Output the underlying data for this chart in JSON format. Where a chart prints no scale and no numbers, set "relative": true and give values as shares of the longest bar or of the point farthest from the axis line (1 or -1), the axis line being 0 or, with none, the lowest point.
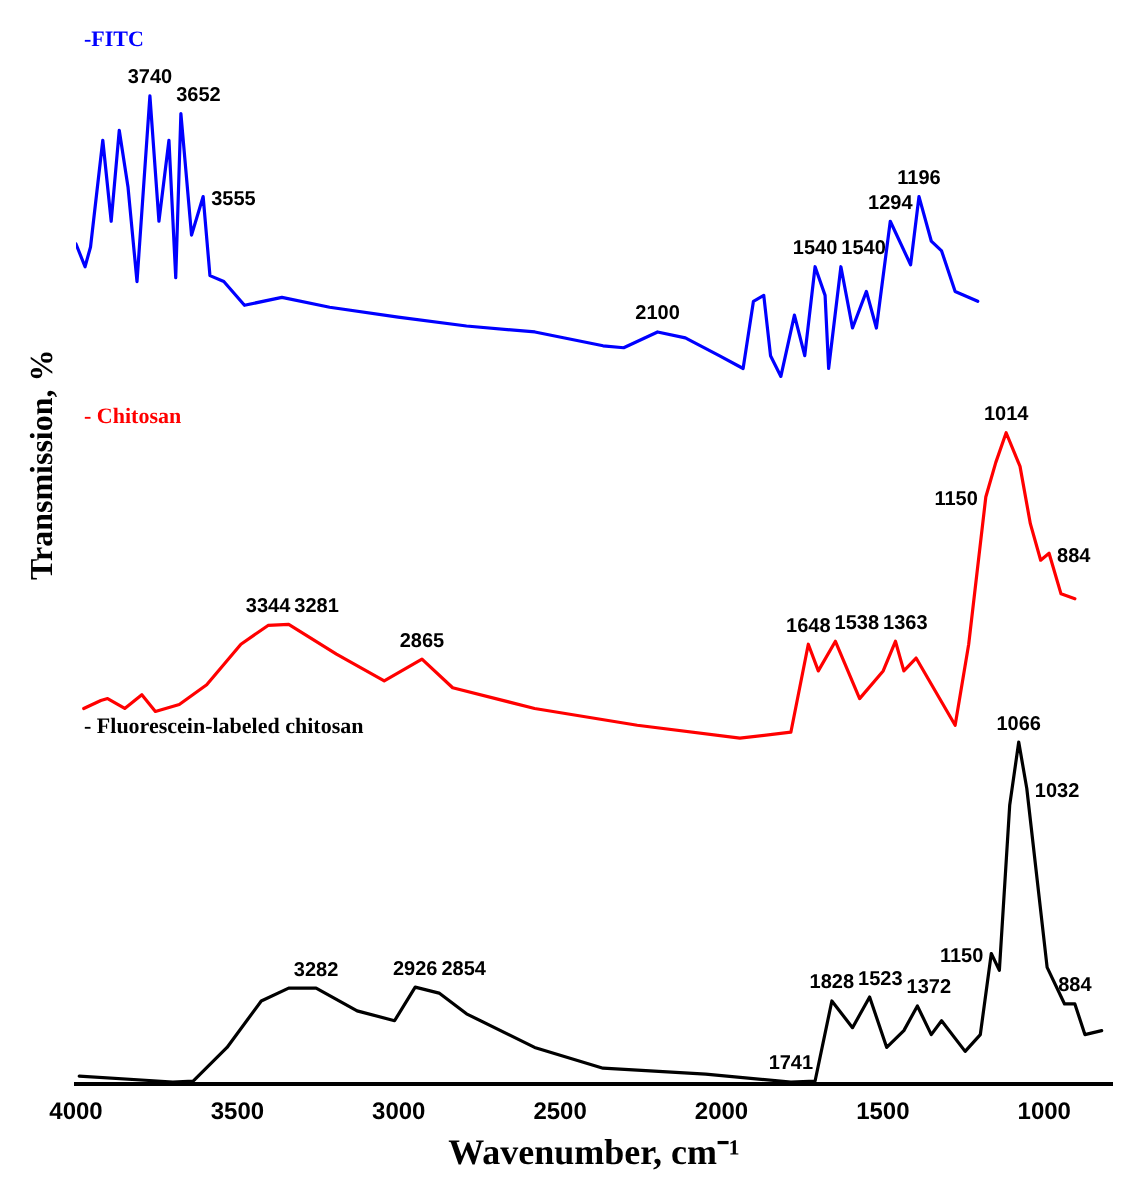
{
  "chart_data": {
    "type": "line",
    "relative": true,
    "xlabel": "Wavenumber, cm⁻¹",
    "ylabel": "Transmission, %",
    "xlim": [
      4000,
      790
    ],
    "xticks": [
      4000,
      3500,
      3000,
      2500,
      2000,
      1500,
      1000
    ],
    "grid": false,
    "legend": false,
    "marker": "none",
    "line_style": "solid",
    "series": [
      {
        "name": "-FITC",
        "color": "#0000ff",
        "x": [
          4000,
          3972,
          3955,
          3917,
          3891,
          3866,
          3839,
          3811,
          3771,
          3743,
          3712,
          3691,
          3675,
          3642,
          3606,
          3585,
          3542,
          3478,
          3362,
          3214,
          3002,
          2790,
          2578,
          2367,
          2303,
          2198,
          2112,
          2007,
          1933,
          1901,
          1869,
          1848,
          1816,
          1774,
          1742,
          1710,
          1679,
          1668,
          1630,
          1594,
          1551,
          1520,
          1477,
          1414,
          1388,
          1350,
          1318,
          1276,
          1206
        ],
        "values": [
          0.85,
          0.827,
          0.847,
          0.955,
          0.873,
          0.965,
          0.908,
          0.812,
          1.0,
          0.873,
          0.955,
          0.816,
          0.982,
          0.859,
          0.898,
          0.818,
          0.812,
          0.788,
          0.796,
          0.786,
          0.776,
          0.767,
          0.761,
          0.747,
          0.745,
          0.761,
          0.755,
          0.737,
          0.724,
          0.792,
          0.798,
          0.737,
          0.716,
          0.778,
          0.737,
          0.827,
          0.798,
          0.724,
          0.827,
          0.765,
          0.802,
          0.765,
          0.873,
          0.829,
          0.898,
          0.853,
          0.843,
          0.802,
          0.792
        ]
      },
      {
        "name": "- Chitosan",
        "color": "#ff0000",
        "x": [
          3976,
          3923,
          3902,
          3849,
          3796,
          3754,
          3680,
          3595,
          3489,
          3405,
          3341,
          3193,
          3045,
          2928,
          2833,
          2579,
          2261,
          1943,
          1785,
          1731,
          1700,
          1647,
          1572,
          1499,
          1461,
          1435,
          1397,
          1276,
          1234,
          1181,
          1150,
          1118,
          1075,
          1043,
          1011,
          985,
          948,
          905
        ],
        "values": [
          0.38,
          0.388,
          0.39,
          0.38,
          0.394,
          0.377,
          0.384,
          0.404,
          0.445,
          0.464,
          0.465,
          0.435,
          0.408,
          0.43,
          0.401,
          0.38,
          0.363,
          0.35,
          0.356,
          0.445,
          0.418,
          0.448,
          0.39,
          0.418,
          0.448,
          0.418,
          0.431,
          0.363,
          0.445,
          0.594,
          0.629,
          0.659,
          0.625,
          0.567,
          0.53,
          0.537,
          0.496,
          0.491
        ]
      },
      {
        "name": "- Fluorescein-labeled chitosan",
        "color": "#000000",
        "x": [
          3990,
          3700,
          3637,
          3532,
          3426,
          3341,
          3256,
          3129,
          3013,
          2949,
          2875,
          2790,
          2579,
          2367,
          2049,
          1785,
          1710,
          1658,
          1594,
          1541,
          1488,
          1435,
          1393,
          1350,
          1318,
          1245,
          1198,
          1164,
          1139,
          1107,
          1079,
          1054,
          991,
          937,
          905,
          874,
          822
        ],
        "values": [
          0.008,
          0.002,
          0.003,
          0.037,
          0.084,
          0.097,
          0.097,
          0.074,
          0.064,
          0.098,
          0.092,
          0.071,
          0.037,
          0.016,
          0.01,
          0.002,
          0.003,
          0.084,
          0.057,
          0.088,
          0.037,
          0.054,
          0.079,
          0.05,
          0.064,
          0.033,
          0.05,
          0.132,
          0.115,
          0.282,
          0.346,
          0.299,
          0.118,
          0.081,
          0.081,
          0.05,
          0.054
        ]
      }
    ],
    "annotations": [
      {
        "text": "3740",
        "x": 3771,
        "y": 1.0
      },
      {
        "text": "3652",
        "x": 3675,
        "y": 0.982
      },
      {
        "text": "3555",
        "x": 3606,
        "y": 0.898
      },
      {
        "text": "2100",
        "x": 2198,
        "y": 0.761
      },
      {
        "text": "1540",
        "x": 1710,
        "y": 0.827
      },
      {
        "text": "1540",
        "x": 1630,
        "y": 0.827
      },
      {
        "text": "1294",
        "x": 1477,
        "y": 0.873
      },
      {
        "text": "1196",
        "x": 1388,
        "y": 0.898
      },
      {
        "text": "3344",
        "x": 3405,
        "y": 0.464
      },
      {
        "text": "3281",
        "x": 3341,
        "y": 0.465
      },
      {
        "text": "2865",
        "x": 2928,
        "y": 0.43
      },
      {
        "text": "1648",
        "x": 1731,
        "y": 0.445
      },
      {
        "text": "1538",
        "x": 1647,
        "y": 0.448
      },
      {
        "text": "1363",
        "x": 1461,
        "y": 0.448
      },
      {
        "text": "1150",
        "x": 1181,
        "y": 0.594
      },
      {
        "text": "1014",
        "x": 1118,
        "y": 0.659
      },
      {
        "text": "884",
        "x": 985,
        "y": 0.537
      },
      {
        "text": "3282",
        "x": 3256,
        "y": 0.097
      },
      {
        "text": "2926",
        "x": 2949,
        "y": 0.098
      },
      {
        "text": "2854",
        "x": 2875,
        "y": 0.092
      },
      {
        "text": "1741",
        "x": 1785,
        "y": 0.002
      },
      {
        "text": "1828",
        "x": 1658,
        "y": 0.084
      },
      {
        "text": "1523",
        "x": 1541,
        "y": 0.088
      },
      {
        "text": "1372",
        "x": 1393,
        "y": 0.079
      },
      {
        "text": "1150",
        "x": 1164,
        "y": 0.132
      },
      {
        "text": "1066",
        "x": 1079,
        "y": 0.346
      },
      {
        "text": "1032",
        "x": 1054,
        "y": 0.299
      },
      {
        "text": "884",
        "x": 905,
        "y": 0.081
      }
    ]
  }
}
